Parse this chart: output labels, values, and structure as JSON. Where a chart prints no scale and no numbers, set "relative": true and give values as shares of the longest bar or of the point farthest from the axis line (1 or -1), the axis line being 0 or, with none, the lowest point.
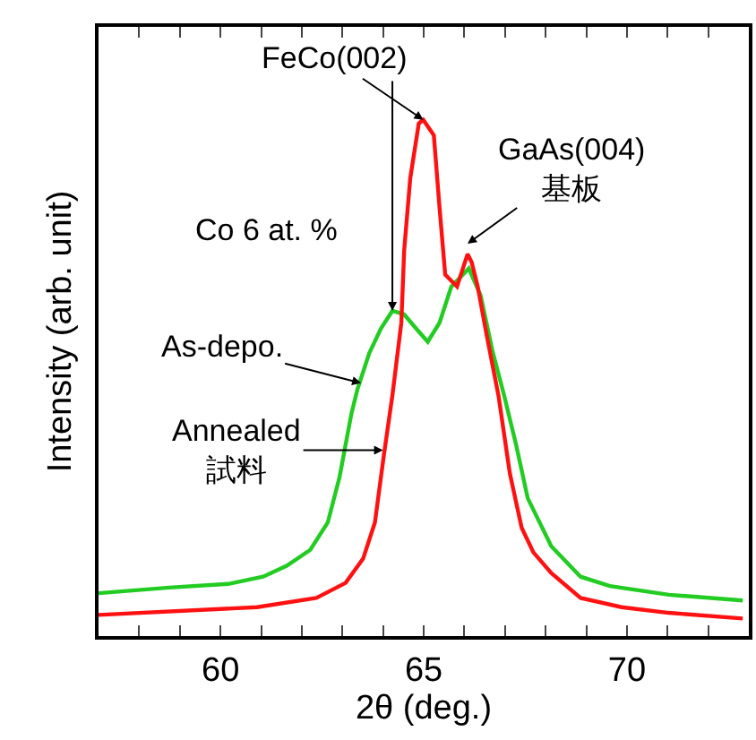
{
  "chart_data": {
    "type": "line",
    "relative": true,
    "xlabel": "2θ (deg.)",
    "ylabel": "Intensity (arb. unit)",
    "xlim": [
      57,
      73
    ],
    "xticks": [
      {
        "value": 57,
        "label": null
      },
      {
        "value": 58,
        "label": null
      },
      {
        "value": 59,
        "label": null
      },
      60,
      {
        "value": 61,
        "label": null
      },
      {
        "value": 62,
        "label": null
      },
      {
        "value": 63,
        "label": null
      },
      {
        "value": 64,
        "label": null
      },
      65,
      {
        "value": 66,
        "label": null
      },
      {
        "value": 67,
        "label": null
      },
      {
        "value": 68,
        "label": null
      },
      {
        "value": 69,
        "label": null
      },
      70,
      {
        "value": 71,
        "label": null
      },
      {
        "value": 72,
        "label": null
      }
    ],
    "marker": "none",
    "line_style": "solid",
    "series": [
      {
        "color": "#22cc22",
        "x": [
          57.0,
          58.74,
          60.19,
          61.05,
          61.63,
          62.21,
          62.64,
          62.93,
          63.22,
          63.37,
          63.66,
          63.95,
          64.23,
          64.52,
          64.81,
          65.1,
          65.39,
          65.68,
          66.11,
          66.4,
          66.69,
          66.98,
          67.27,
          67.56,
          68.14,
          68.86,
          69.58,
          71.03,
          72.85
        ],
        "values": [
          0.083,
          0.094,
          0.101,
          0.115,
          0.136,
          0.167,
          0.22,
          0.308,
          0.43,
          0.478,
          0.548,
          0.596,
          0.63,
          0.623,
          0.596,
          0.57,
          0.607,
          0.677,
          0.712,
          0.66,
          0.553,
          0.466,
          0.372,
          0.267,
          0.174,
          0.115,
          0.097,
          0.08,
          0.069
        ]
      },
      {
        "color": "#ff1111",
        "x": [
          57.0,
          60.9,
          62.36,
          63.08,
          63.51,
          63.8,
          64.02,
          64.23,
          64.45,
          64.52,
          64.67,
          64.88,
          64.99,
          65.25,
          65.39,
          65.53,
          65.82,
          66.08,
          66.18,
          66.33,
          66.55,
          66.84,
          67.12,
          67.41,
          67.7,
          68.14,
          68.86,
          69.87,
          71.03,
          72.85
        ],
        "values": [
          0.041,
          0.056,
          0.074,
          0.103,
          0.15,
          0.22,
          0.35,
          0.466,
          0.607,
          0.747,
          0.887,
          0.993,
          1.0,
          0.97,
          0.83,
          0.7,
          0.677,
          0.74,
          0.724,
          0.677,
          0.583,
          0.466,
          0.315,
          0.21,
          0.162,
          0.122,
          0.074,
          0.056,
          0.045,
          0.034
        ]
      }
    ],
    "annotations": [
      {
        "text": "FeCo(002)",
        "x": 64.99,
        "y": 1.0
      },
      {
        "text": "GaAs(004)\n基板",
        "x": 66.08,
        "y": 0.76
      },
      "Co 6 at. %",
      {
        "text": "As-depo.",
        "x": 63.46,
        "y": 0.49
      },
      {
        "text": "Annealed\n試料",
        "x": 64.0,
        "y": 0.36
      }
    ]
  }
}
